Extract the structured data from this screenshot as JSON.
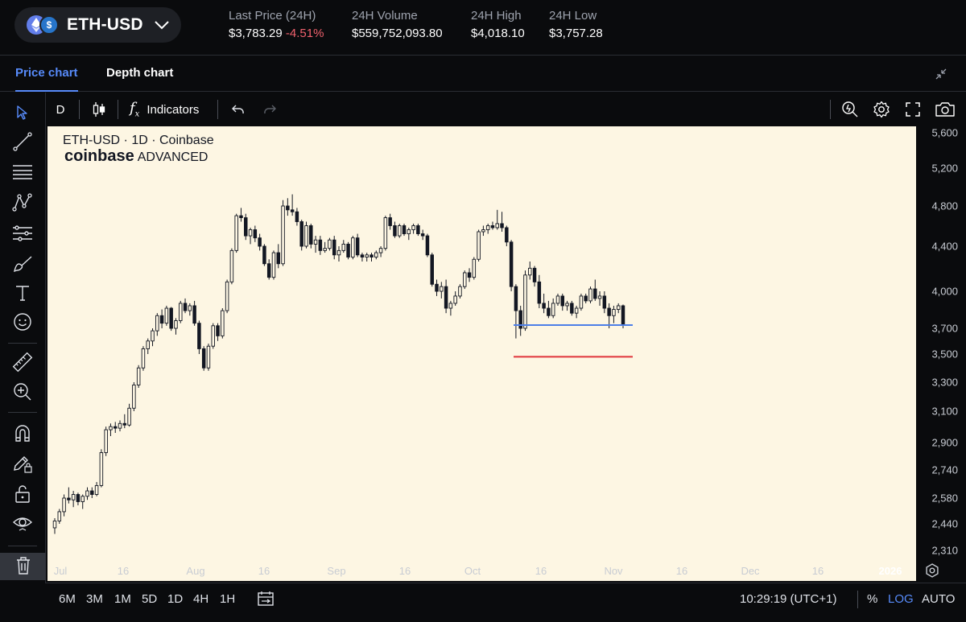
{
  "header": {
    "pair": "ETH-USD",
    "stats": [
      {
        "label": "Last Price (24H)",
        "value": "$3,783.29",
        "change": "-4.51%"
      },
      {
        "label": "24H Volume",
        "value": "$559,752,093.80"
      },
      {
        "label": "24H High",
        "value": "$4,018.10"
      },
      {
        "label": "24H Low",
        "value": "$3,757.28"
      }
    ]
  },
  "tabs": [
    {
      "label": "Price chart",
      "active": true
    },
    {
      "label": "Depth chart",
      "active": false
    }
  ],
  "toolbar": {
    "interval": "D",
    "indicators_label": "Indicators",
    "fx_label": "f"
  },
  "chart": {
    "legend_title": "ETH-USD · 1D · Coinbase",
    "brand": "coinbase",
    "brand_suffix": "ADVANCED",
    "colors": {
      "background": "#fdf6e3",
      "candle": "#131722",
      "support_blue": "#4d7fe8",
      "support_red": "#e0343a"
    }
  },
  "y_ticks": [
    "5,600",
    "5,200",
    "4,800",
    "4,400",
    "4,000",
    "3,700",
    "3,500",
    "3,300",
    "3,100",
    "2,900",
    "2,740",
    "2,580",
    "2,440",
    "2,310"
  ],
  "x_ticks": [
    "Jul",
    "16",
    "Aug",
    "16",
    "Sep",
    "16",
    "Oct",
    "16",
    "Nov",
    "16",
    "Dec",
    "16",
    "2026"
  ],
  "chart_data": {
    "type": "candlestick",
    "scale": "log",
    "candles": [
      [
        2420,
        2470,
        2390,
        2455
      ],
      [
        2455,
        2520,
        2440,
        2505
      ],
      [
        2505,
        2600,
        2480,
        2580
      ],
      [
        2580,
        2640,
        2550,
        2570
      ],
      [
        2570,
        2620,
        2530,
        2600
      ],
      [
        2600,
        2610,
        2540,
        2560
      ],
      [
        2560,
        2600,
        2520,
        2590
      ],
      [
        2590,
        2640,
        2570,
        2620
      ],
      [
        2620,
        2640,
        2580,
        2600
      ],
      [
        2600,
        2670,
        2590,
        2650
      ],
      [
        2650,
        2860,
        2640,
        2840
      ],
      [
        2840,
        3000,
        2820,
        2980
      ],
      [
        2980,
        3020,
        2940,
        3000
      ],
      [
        3000,
        3030,
        2960,
        2990
      ],
      [
        2990,
        3040,
        2970,
        3020
      ],
      [
        3020,
        3080,
        2990,
        3010
      ],
      [
        3010,
        3150,
        3000,
        3120
      ],
      [
        3120,
        3300,
        3100,
        3280
      ],
      [
        3280,
        3420,
        3260,
        3400
      ],
      [
        3400,
        3560,
        3380,
        3540
      ],
      [
        3540,
        3620,
        3500,
        3600
      ],
      [
        3600,
        3700,
        3560,
        3680
      ],
      [
        3680,
        3820,
        3640,
        3800
      ],
      [
        3800,
        3850,
        3700,
        3740
      ],
      [
        3740,
        3880,
        3720,
        3860
      ],
      [
        3860,
        3870,
        3680,
        3700
      ],
      [
        3700,
        3780,
        3650,
        3760
      ],
      [
        3760,
        3920,
        3740,
        3900
      ],
      [
        3900,
        3940,
        3820,
        3840
      ],
      [
        3840,
        3900,
        3800,
        3880
      ],
      [
        3880,
        3920,
        3720,
        3740
      ],
      [
        3740,
        3760,
        3500,
        3540
      ],
      [
        3540,
        3560,
        3380,
        3400
      ],
      [
        3400,
        3580,
        3380,
        3560
      ],
      [
        3560,
        3740,
        3540,
        3720
      ],
      [
        3720,
        3740,
        3600,
        3640
      ],
      [
        3640,
        3860,
        3620,
        3840
      ],
      [
        3840,
        4100,
        3820,
        4080
      ],
      [
        4080,
        4380,
        4060,
        4360
      ],
      [
        4360,
        4720,
        4340,
        4700
      ],
      [
        4700,
        4780,
        4640,
        4680
      ],
      [
        4680,
        4720,
        4460,
        4500
      ],
      [
        4500,
        4580,
        4420,
        4560
      ],
      [
        4560,
        4600,
        4440,
        4480
      ],
      [
        4480,
        4520,
        4360,
        4400
      ],
      [
        4400,
        4420,
        4220,
        4240
      ],
      [
        4240,
        4280,
        4100,
        4120
      ],
      [
        4120,
        4360,
        4100,
        4340
      ],
      [
        4340,
        4420,
        4200,
        4240
      ],
      [
        4240,
        4860,
        4220,
        4800
      ],
      [
        4800,
        4880,
        4700,
        4760
      ],
      [
        4760,
        4920,
        4700,
        4740
      ],
      [
        4740,
        4780,
        4600,
        4640
      ],
      [
        4640,
        4660,
        4360,
        4400
      ],
      [
        4400,
        4640,
        4380,
        4600
      ],
      [
        4600,
        4620,
        4380,
        4420
      ],
      [
        4420,
        4500,
        4340,
        4460
      ],
      [
        4460,
        4500,
        4320,
        4360
      ],
      [
        4360,
        4440,
        4340,
        4380
      ],
      [
        4380,
        4480,
        4360,
        4460
      ],
      [
        4460,
        4500,
        4280,
        4320
      ],
      [
        4320,
        4400,
        4260,
        4360
      ],
      [
        4360,
        4460,
        4340,
        4420
      ],
      [
        4420,
        4440,
        4280,
        4300
      ],
      [
        4300,
        4500,
        4280,
        4480
      ],
      [
        4480,
        4520,
        4300,
        4320
      ],
      [
        4320,
        4340,
        4260,
        4300
      ],
      [
        4300,
        4340,
        4260,
        4320
      ],
      [
        4320,
        4340,
        4260,
        4300
      ],
      [
        4300,
        4360,
        4280,
        4340
      ],
      [
        4340,
        4400,
        4300,
        4380
      ],
      [
        4380,
        4700,
        4360,
        4680
      ],
      [
        4680,
        4720,
        4560,
        4600
      ],
      [
        4600,
        4640,
        4480,
        4500
      ],
      [
        4500,
        4620,
        4480,
        4600
      ],
      [
        4600,
        4620,
        4500,
        4520
      ],
      [
        4520,
        4580,
        4460,
        4560
      ],
      [
        4560,
        4620,
        4520,
        4600
      ],
      [
        4600,
        4620,
        4500,
        4520
      ],
      [
        4520,
        4560,
        4460,
        4500
      ],
      [
        4500,
        4520,
        4300,
        4320
      ],
      [
        4320,
        4340,
        4040,
        4060
      ],
      [
        4060,
        4100,
        3960,
        4000
      ],
      [
        4000,
        4080,
        3940,
        4040
      ],
      [
        4040,
        4100,
        3820,
        3860
      ],
      [
        3860,
        3920,
        3800,
        3900
      ],
      [
        3900,
        4000,
        3880,
        3960
      ],
      [
        3960,
        4060,
        3940,
        4040
      ],
      [
        4040,
        4180,
        4020,
        4160
      ],
      [
        4160,
        4200,
        4080,
        4120
      ],
      [
        4120,
        4300,
        4100,
        4280
      ],
      [
        4280,
        4560,
        4260,
        4540
      ],
      [
        4540,
        4600,
        4500,
        4560
      ],
      [
        4560,
        4620,
        4520,
        4600
      ],
      [
        4600,
        4640,
        4560,
        4580
      ],
      [
        4580,
        4760,
        4560,
        4620
      ],
      [
        4620,
        4740,
        4540,
        4580
      ],
      [
        4580,
        4600,
        4400,
        4440
      ],
      [
        4440,
        4460,
        4000,
        4040
      ],
      [
        4040,
        4060,
        3620,
        3840
      ],
      [
        3840,
        3880,
        3640,
        3700
      ],
      [
        3700,
        4180,
        3680,
        4140
      ],
      [
        4140,
        4260,
        4100,
        4200
      ],
      [
        4200,
        4220,
        4040,
        4080
      ],
      [
        4080,
        4140,
        3860,
        3900
      ],
      [
        3900,
        3980,
        3820,
        3860
      ],
      [
        3860,
        3920,
        3780,
        3800
      ],
      [
        3800,
        3940,
        3780,
        3900
      ],
      [
        3900,
        3980,
        3880,
        3960
      ],
      [
        3960,
        3980,
        3840,
        3880
      ],
      [
        3880,
        3920,
        3840,
        3900
      ],
      [
        3900,
        3920,
        3800,
        3820
      ],
      [
        3820,
        3880,
        3780,
        3860
      ],
      [
        3860,
        3980,
        3840,
        3960
      ],
      [
        3960,
        3980,
        3900,
        3920
      ],
      [
        3920,
        4040,
        3900,
        4020
      ],
      [
        4020,
        4100,
        3920,
        3940
      ],
      [
        3940,
        4000,
        3880,
        3960
      ],
      [
        3960,
        4000,
        3820,
        3860
      ],
      [
        3860,
        3900,
        3700,
        3800
      ],
      [
        3800,
        3880,
        3740,
        3850
      ],
      [
        3850,
        3900,
        3820,
        3880
      ],
      [
        3880,
        3890,
        3700,
        3725
      ]
    ],
    "support_lines": [
      {
        "price": 3725,
        "color": "#4d7fe8"
      },
      {
        "price": 3480,
        "color": "#e0343a"
      }
    ]
  },
  "bottom": {
    "ranges": [
      "6M",
      "3M",
      "1M",
      "5D",
      "1D",
      "4H",
      "1H"
    ],
    "time": "10:29:19 (UTC+1)",
    "percent": "%",
    "log": "LOG",
    "auto": "AUTO"
  }
}
